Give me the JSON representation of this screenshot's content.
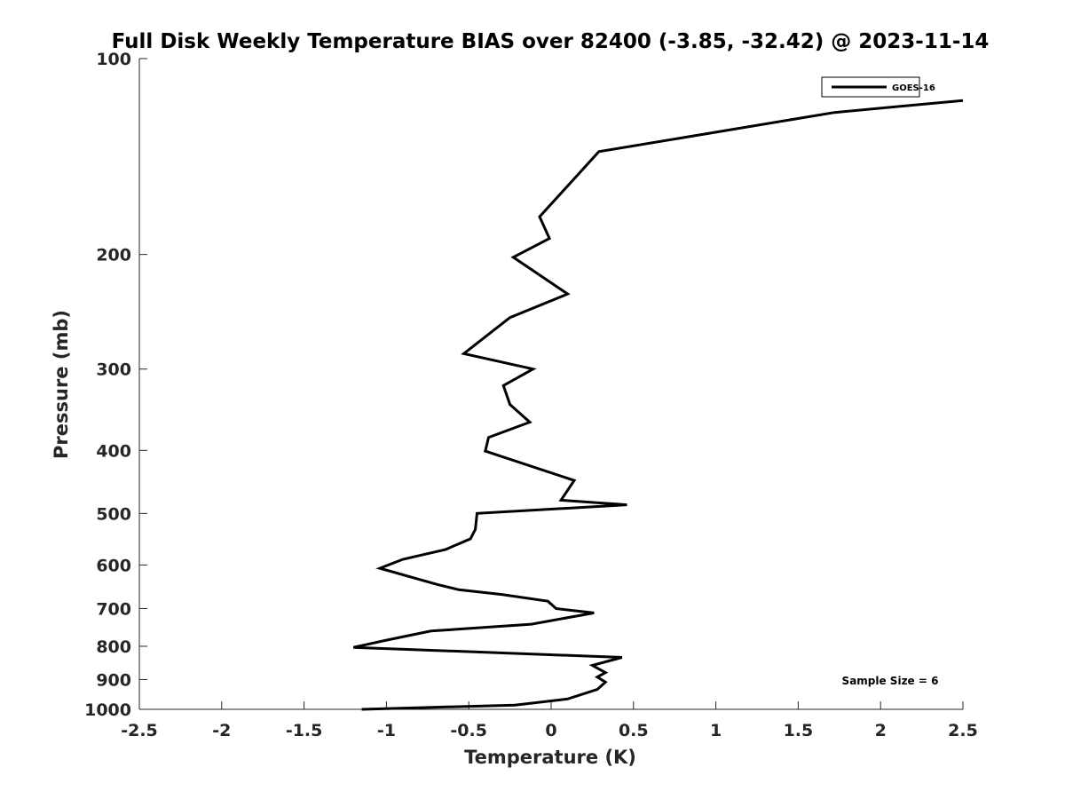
{
  "chart_data": {
    "type": "line",
    "title": "Full Disk Weekly Temperature BIAS over 82400 (-3.85, -32.42) @ 2023-11-14",
    "xlabel": "Temperature (K)",
    "ylabel": "Pressure (mb)",
    "xlim": [
      -2.5,
      2.5
    ],
    "ylim": [
      100,
      1000
    ],
    "y_scale": "log",
    "y_reversed": true,
    "x_ticks": [
      -2.5,
      -2,
      -1.5,
      -1,
      -0.5,
      0,
      0.5,
      1,
      1.5,
      2,
      2.5
    ],
    "x_tick_labels": [
      "-2.5",
      "-2",
      "-1.5",
      "-1",
      "-0.5",
      "0",
      "0.5",
      "1",
      "1.5",
      "2",
      "2.5"
    ],
    "y_ticks": [
      100,
      200,
      300,
      400,
      500,
      600,
      700,
      800,
      900,
      1000
    ],
    "y_tick_labels": [
      "100",
      "200",
      "300",
      "400",
      "500",
      "600",
      "700",
      "800",
      "900",
      "1000"
    ],
    "grid": false,
    "legend_position": "top-right",
    "annotation": "Sample Size = 6",
    "series": [
      {
        "name": "GOES-16",
        "color": "#000000",
        "x": [
          2.5,
          1.72,
          0.29,
          -0.07,
          -0.01,
          -0.23,
          0.1,
          -0.25,
          -0.53,
          -0.11,
          -0.29,
          -0.25,
          -0.13,
          -0.38,
          -0.4,
          0.14,
          0.06,
          0.46,
          -0.45,
          -0.46,
          -0.49,
          -0.64,
          -0.9,
          -1.04,
          -0.69,
          -0.56,
          -0.3,
          -0.02,
          0.03,
          0.26,
          -0.12,
          -0.73,
          -1.0,
          -1.2,
          0.43,
          0.25,
          0.33,
          0.28,
          0.33,
          0.28,
          0.1,
          -0.22,
          -1.15
        ],
        "y": [
          116,
          121,
          139,
          175,
          189,
          202,
          230,
          250,
          284,
          300,
          318,
          340,
          362,
          382,
          401,
          445,
          477,
          485,
          500,
          529,
          547,
          568,
          588,
          607,
          643,
          655,
          666,
          682,
          700,
          711,
          740,
          758,
          783,
          803,
          832,
          856,
          878,
          892,
          908,
          932,
          964,
          985,
          1000
        ]
      }
    ]
  }
}
